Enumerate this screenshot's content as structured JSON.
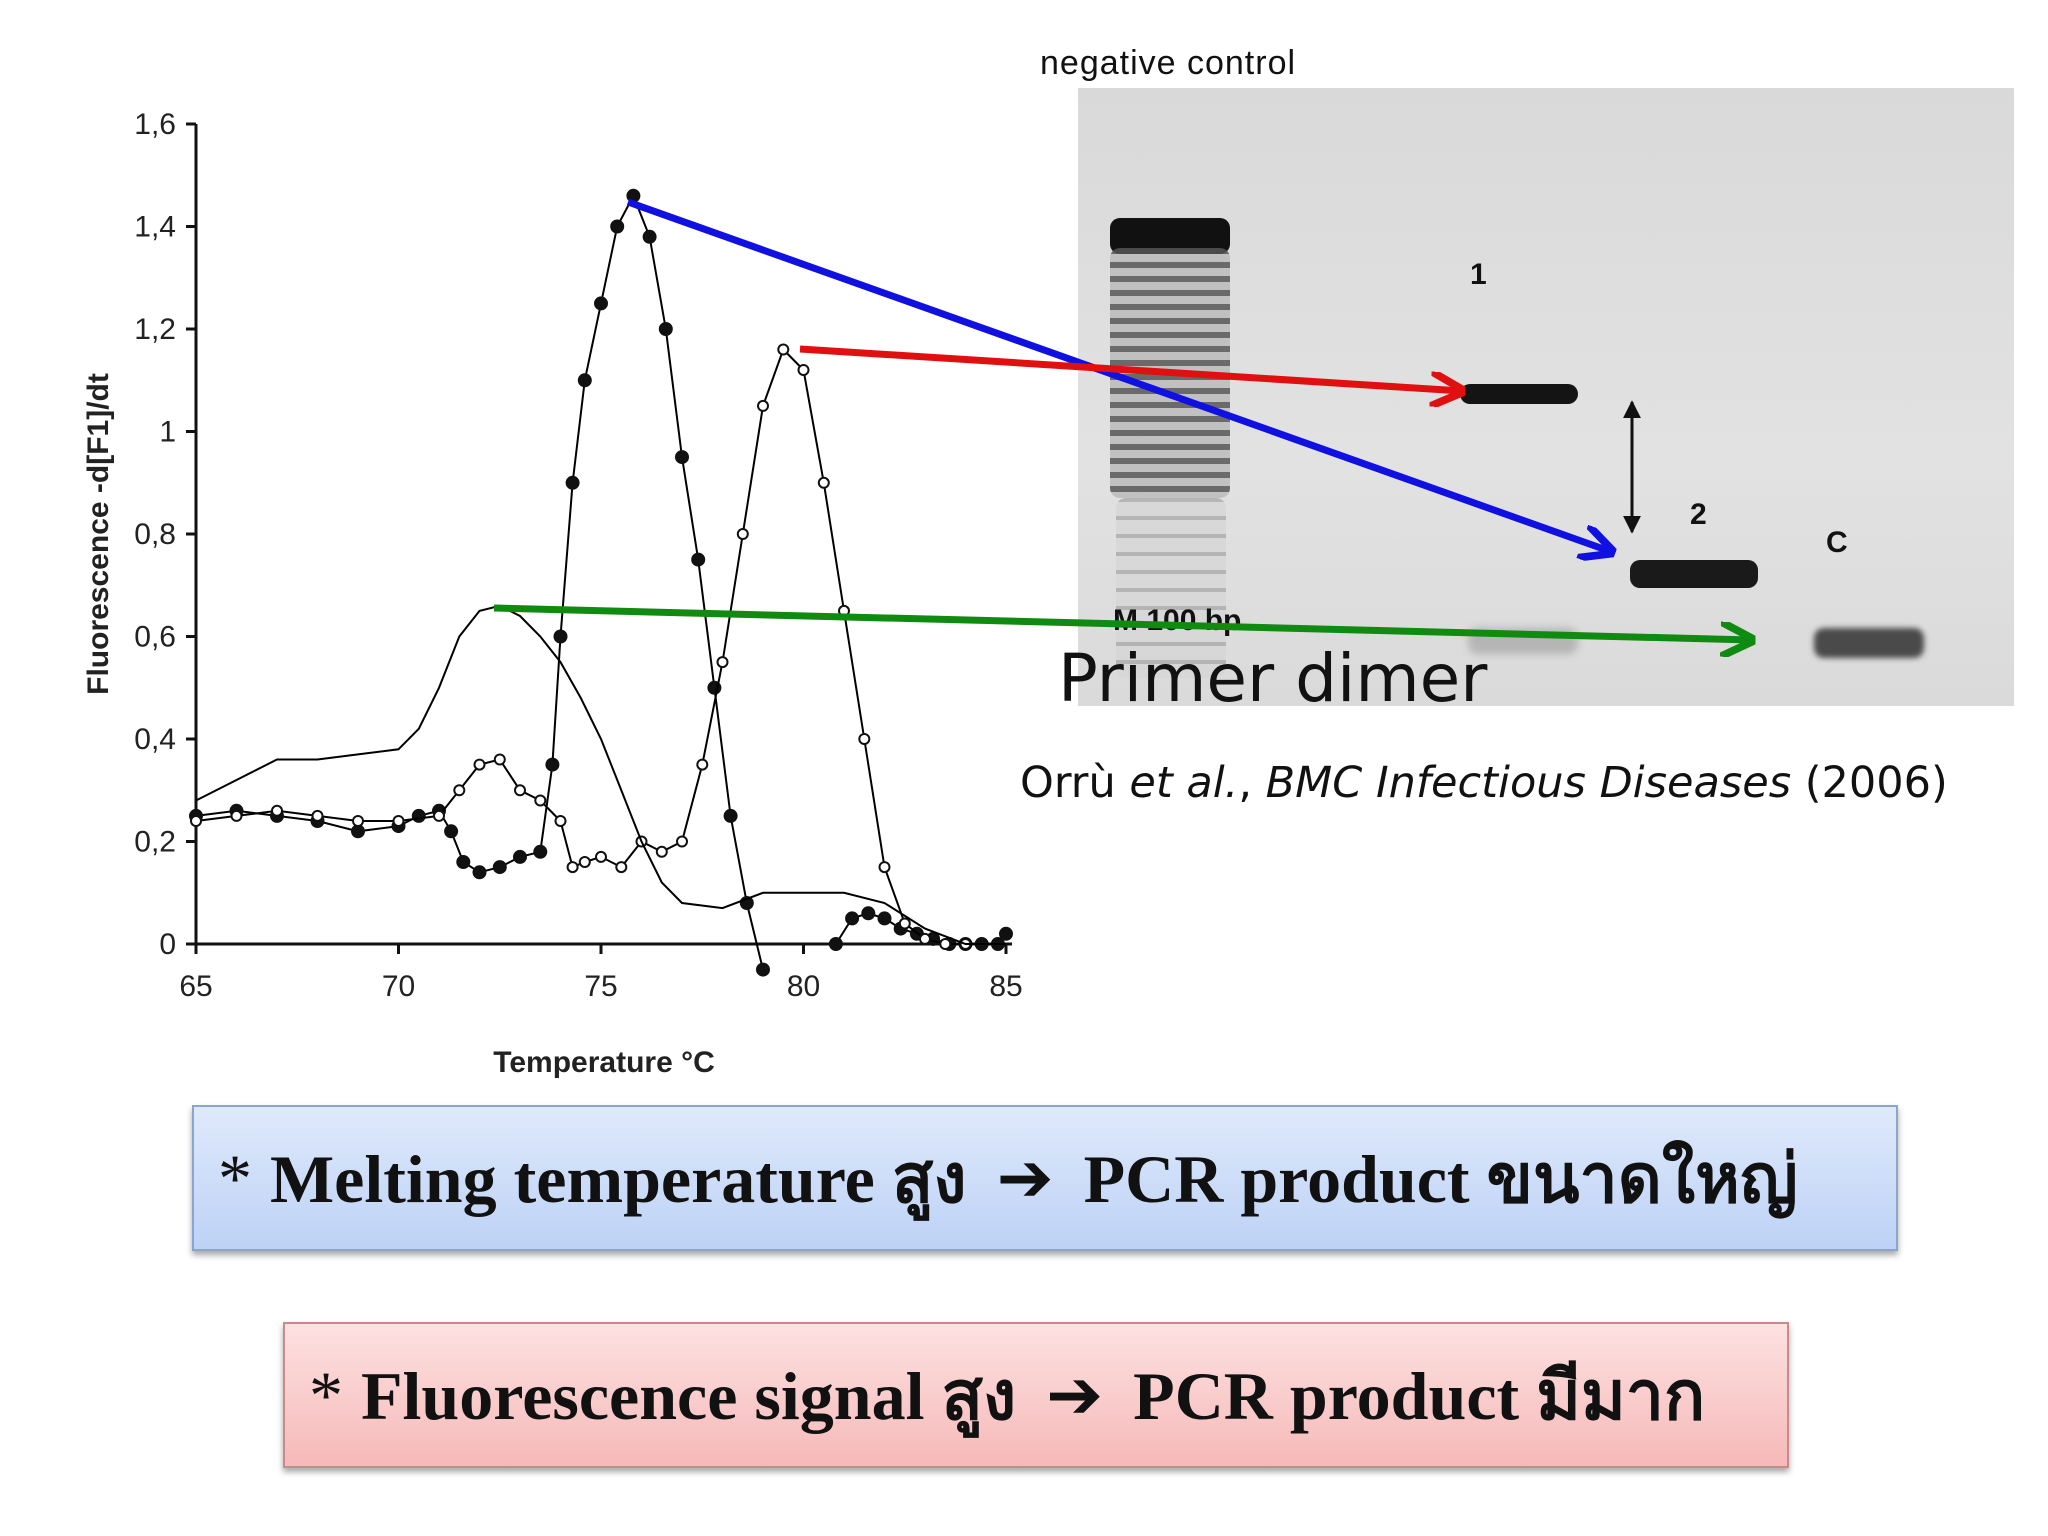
{
  "chart_data": {
    "type": "line",
    "xlabel": "Temperature °C",
    "ylabel": "Fluorescence -d[F1]/dt",
    "xlim": [
      65,
      85
    ],
    "ylim": [
      0,
      1.6
    ],
    "xticks": [
      "65",
      "70",
      "75",
      "80",
      "85"
    ],
    "yticks": [
      "0",
      "0,2",
      "0,4",
      "0,6",
      "0,8",
      "1",
      "1,2",
      "1,4",
      "1,6"
    ],
    "series": [
      {
        "marker": "filled-circle",
        "color": "#000000",
        "x": [
          65.0,
          66.0,
          67.0,
          68.0,
          69.0,
          70.0,
          70.5,
          71.0,
          71.3,
          71.6,
          72.0,
          72.5,
          73.0,
          73.5,
          73.8,
          74.0,
          74.3,
          74.6,
          75.0,
          75.4,
          75.8,
          76.2,
          76.6,
          77.0,
          77.4,
          77.8,
          78.2,
          78.6,
          79.0
        ],
        "y": [
          0.25,
          0.26,
          0.25,
          0.24,
          0.22,
          0.23,
          0.25,
          0.26,
          0.22,
          0.16,
          0.14,
          0.15,
          0.17,
          0.18,
          0.35,
          0.6,
          0.9,
          1.1,
          1.25,
          1.4,
          1.46,
          1.38,
          1.2,
          0.95,
          0.75,
          0.5,
          0.25,
          0.08,
          -0.05
        ]
      },
      {
        "marker": "filled-circle",
        "color": "#000000",
        "x": [
          80.8,
          81.2,
          81.6,
          82.0,
          82.4,
          82.8,
          83.2,
          83.6,
          84.0,
          84.4,
          84.8,
          85.0
        ],
        "y": [
          0.0,
          0.05,
          0.06,
          0.05,
          0.03,
          0.02,
          0.01,
          0.0,
          0.0,
          0.0,
          0.0,
          0.02
        ]
      },
      {
        "marker": "open-circle",
        "color": "#000000",
        "x": [
          65.0,
          66.0,
          67.0,
          68.0,
          69.0,
          70.0,
          71.0,
          71.5,
          72.0,
          72.5,
          73.0,
          73.5,
          74.0,
          74.3,
          74.6,
          75.0,
          75.5,
          76.0,
          76.5,
          77.0,
          77.5,
          78.0,
          78.5,
          79.0,
          79.5,
          80.0,
          80.5,
          81.0,
          81.5,
          82.0,
          82.5,
          83.0,
          83.5,
          84.0
        ],
        "y": [
          0.24,
          0.25,
          0.26,
          0.25,
          0.24,
          0.24,
          0.25,
          0.3,
          0.35,
          0.36,
          0.3,
          0.28,
          0.24,
          0.15,
          0.16,
          0.17,
          0.15,
          0.2,
          0.18,
          0.2,
          0.35,
          0.55,
          0.8,
          1.05,
          1.16,
          1.12,
          0.9,
          0.65,
          0.4,
          0.15,
          0.04,
          0.01,
          0.0,
          0.0
        ]
      },
      {
        "marker": "none",
        "color": "#000000",
        "x": [
          65.0,
          66.0,
          67.0,
          68.0,
          69.0,
          70.0,
          70.5,
          71.0,
          71.5,
          72.0,
          72.5,
          73.0,
          73.5,
          74.0,
          74.5,
          75.0,
          75.5,
          76.0,
          76.5,
          77.0,
          78.0,
          79.0,
          80.0,
          81.0,
          82.0,
          83.0,
          84.0,
          85.0
        ],
        "y": [
          0.28,
          0.32,
          0.36,
          0.36,
          0.37,
          0.38,
          0.42,
          0.5,
          0.6,
          0.65,
          0.66,
          0.64,
          0.6,
          0.55,
          0.48,
          0.4,
          0.3,
          0.2,
          0.12,
          0.08,
          0.07,
          0.1,
          0.1,
          0.1,
          0.08,
          0.03,
          0.0,
          0.0
        ]
      }
    ],
    "annotations": [
      {
        "color": "#1010e0",
        "label": "peak ~76°C -> band 2"
      },
      {
        "color": "#e01010",
        "label": "peak ~80°C -> band 1"
      },
      {
        "color": "#108a10",
        "label": "shoulder ~72°C -> band C (Primer dimer)"
      }
    ]
  },
  "gel": {
    "header": "negative control",
    "ladder_label": "M 100 bp",
    "lane_1": "1",
    "lane_2": "2",
    "lane_c": "C",
    "primer_label": "Primer dimer"
  },
  "citation": {
    "authors": "Orrù ",
    "etal": "et al.",
    "sep": ", ",
    "journal": "BMC Infectious Diseases",
    "year": " (2006)"
  },
  "banners": [
    {
      "star": "*",
      "left": "Melting temperature สูง",
      "arrow": "➔",
      "right": "PCR product ขนาดใหญ่"
    },
    {
      "star": "*",
      "left": "Fluorescence signal สูง",
      "arrow": "➔",
      "right": "PCR product มีมาก"
    }
  ]
}
